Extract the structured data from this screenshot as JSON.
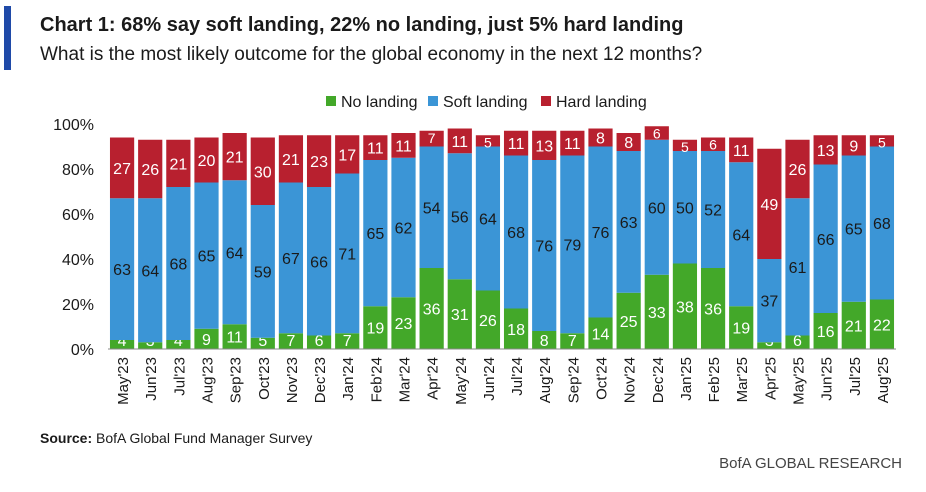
{
  "header": {
    "title": "Chart 1: 68% say soft landing, 22% no landing, just 5% hard landing",
    "subtitle": "What is the most likely outcome for the global economy in the next 12 months?"
  },
  "footer": {
    "source_label": "Source:",
    "source_text": "BofA Global Fund Manager Survey",
    "brand": "BofA GLOBAL RESEARCH"
  },
  "chart_data": {
    "type": "bar",
    "stacked": true,
    "title": "Chart 1: 68% say soft landing, 22% no landing, just 5% hard landing",
    "subtitle": "What is the most likely outcome for the global economy in the next 12 months?",
    "xlabel": "",
    "ylabel": "",
    "ylim": [
      0,
      100
    ],
    "yticks": [
      "0%",
      "20%",
      "40%",
      "60%",
      "80%",
      "100%"
    ],
    "legend_position": "top",
    "categories": [
      "May'23",
      "Jun'23",
      "Jul'23",
      "Aug'23",
      "Sep'23",
      "Oct'23",
      "Nov'23",
      "Dec'23",
      "Jan'24",
      "Feb'24",
      "Mar'24",
      "Apr'24",
      "May'24",
      "Jun'24",
      "Jul'24",
      "Aug'24",
      "Sep'24",
      "Oct'24",
      "Nov'24",
      "Dec'24",
      "Jan'25",
      "Feb'25",
      "Mar'25",
      "Apr'25",
      "May'25",
      "Jun'25",
      "Jul'25",
      "Aug'25"
    ],
    "series": [
      {
        "name": "No landing",
        "color": "#43a829",
        "values": [
          4,
          3,
          4,
          9,
          11,
          5,
          7,
          6,
          7,
          19,
          23,
          36,
          31,
          26,
          18,
          8,
          7,
          14,
          25,
          33,
          38,
          36,
          19,
          3,
          6,
          16,
          21,
          22
        ]
      },
      {
        "name": "Soft landing",
        "color": "#3b95d6",
        "values": [
          63,
          64,
          68,
          65,
          64,
          59,
          67,
          66,
          71,
          65,
          62,
          54,
          56,
          64,
          68,
          76,
          79,
          76,
          63,
          60,
          50,
          52,
          64,
          37,
          61,
          66,
          65,
          68
        ]
      },
      {
        "name": "Hard landing",
        "color": "#b8202f",
        "values": [
          27,
          26,
          21,
          20,
          21,
          30,
          21,
          23,
          17,
          11,
          11,
          7,
          11,
          5,
          11,
          13,
          11,
          8,
          8,
          6,
          5,
          6,
          11,
          49,
          26,
          13,
          9,
          5
        ]
      }
    ]
  }
}
